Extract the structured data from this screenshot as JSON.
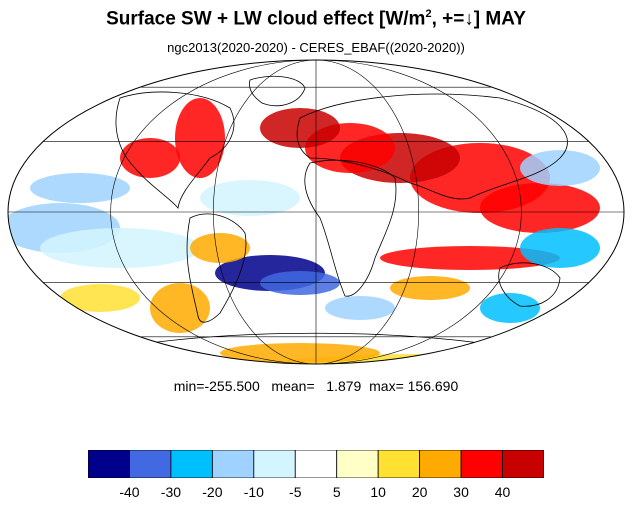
{
  "title": {
    "main": "Surface SW + LW cloud effect [W/m",
    "sup": "2",
    "tail": ", +=↓]  MAY"
  },
  "subtitle": "ngc2013(2020-2020) - CERES_EBAF((2020-2020))",
  "stats": {
    "min_label": "min=",
    "min": "-255.500",
    "mean_label": "mean=",
    "mean": "1.879",
    "max_label": "max=",
    "max": "156.690"
  },
  "colorbar": {
    "levels": [
      "-40",
      "-30",
      "-20",
      "-10",
      "-5",
      "5",
      "10",
      "20",
      "30",
      "40"
    ],
    "colors": [
      "#00008b",
      "#4169e1",
      "#00bfff",
      "#a0d2ff",
      "#d2f5ff",
      "#ffffff",
      "#ffffc8",
      "#ffe132",
      "#ffaa00",
      "#ff0000",
      "#c80000"
    ]
  },
  "map": {
    "projection": "mollweide",
    "grid": true
  }
}
